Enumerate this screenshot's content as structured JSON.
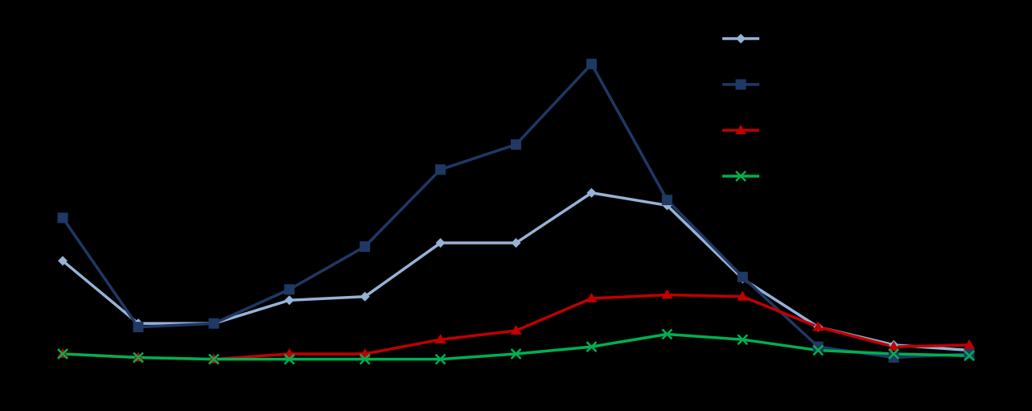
{
  "chart_data": {
    "type": "line",
    "title": "",
    "xlabel": "",
    "ylabel": "",
    "x": [
      1,
      2,
      3,
      4,
      5,
      6,
      7,
      8,
      9,
      10,
      11,
      12,
      13
    ],
    "ylim": [
      0,
      100
    ],
    "grid": false,
    "legend_position": "top-right",
    "series": [
      {
        "color": "#95b3d7",
        "marker": "diamond",
        "values": [
          26.0,
          8.5,
          8.5,
          15.0,
          16.0,
          31.0,
          31.0,
          45.0,
          41.5,
          21.0,
          7.5,
          2.5,
          1.0
        ]
      },
      {
        "color": "#1f3864",
        "marker": "square",
        "values": [
          38.0,
          7.5,
          8.5,
          18.0,
          30.0,
          51.5,
          58.5,
          81.0,
          43.0,
          21.5,
          2.0,
          -1.0,
          0.0
        ]
      },
      {
        "color": "#c00000",
        "marker": "triangle",
        "values": [
          0.0,
          -1.0,
          -1.5,
          0.0,
          0.0,
          4.0,
          6.5,
          15.5,
          16.5,
          16.0,
          7.5,
          2.0,
          2.5
        ]
      },
      {
        "color": "#00b050",
        "marker": "x",
        "values": [
          0.0,
          -1.0,
          -1.5,
          -1.5,
          -1.5,
          -1.5,
          0.0,
          2.0,
          5.5,
          4.0,
          1.0,
          0.0,
          -0.5
        ]
      }
    ]
  }
}
